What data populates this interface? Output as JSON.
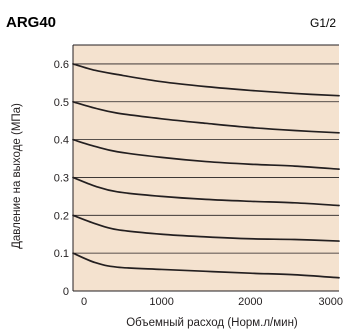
{
  "header": {
    "model": "ARG40",
    "port_size": "G1/2"
  },
  "colors": {
    "plot_background": "#f4e2cf",
    "curve": "#231f20",
    "frame": "#231f20",
    "text": "#231f20"
  },
  "chart_data": {
    "type": "line",
    "title": "",
    "xlabel": "Объемный расход (Норм.л/мин)",
    "ylabel": "Давление на выходе (МПа)",
    "xlim": [
      0,
      3000
    ],
    "ylim": [
      0,
      0.65
    ],
    "x_ticks": [
      0,
      1000,
      2000,
      3000
    ],
    "x_tick_labels": [
      "0",
      "1000",
      "2000",
      "3000"
    ],
    "y_ticks": [
      0,
      0.1,
      0.2,
      0.3,
      0.4,
      0.5,
      0.6
    ],
    "y_tick_labels": [
      "0",
      "0.1",
      "0.2",
      "0.3",
      "0.4",
      "0.5",
      "0.6"
    ],
    "grid": "horizontal",
    "legend": "none",
    "series": [
      {
        "x": [
          0,
          250,
          500,
          1000,
          1500,
          2000,
          2500,
          3000
        ],
        "y": [
          0.1,
          0.075,
          0.063,
          0.057,
          0.052,
          0.047,
          0.043,
          0.035
        ]
      },
      {
        "x": [
          0,
          250,
          500,
          1000,
          1500,
          2000,
          2500,
          3000
        ],
        "y": [
          0.2,
          0.178,
          0.162,
          0.15,
          0.143,
          0.138,
          0.136,
          0.132
        ]
      },
      {
        "x": [
          0,
          250,
          500,
          1000,
          1500,
          2000,
          2500,
          3000
        ],
        "y": [
          0.3,
          0.277,
          0.262,
          0.25,
          0.242,
          0.237,
          0.233,
          0.226
        ]
      },
      {
        "x": [
          0,
          250,
          500,
          1000,
          1500,
          2000,
          2500,
          3000
        ],
        "y": [
          0.4,
          0.382,
          0.368,
          0.353,
          0.342,
          0.335,
          0.33,
          0.322
        ]
      },
      {
        "x": [
          0,
          250,
          500,
          1000,
          1500,
          2000,
          2500,
          3000
        ],
        "y": [
          0.5,
          0.483,
          0.47,
          0.455,
          0.443,
          0.432,
          0.424,
          0.418
        ]
      },
      {
        "x": [
          0,
          250,
          500,
          1000,
          1500,
          2000,
          2500,
          3000
        ],
        "y": [
          0.6,
          0.583,
          0.572,
          0.553,
          0.54,
          0.53,
          0.522,
          0.516
        ]
      }
    ]
  }
}
